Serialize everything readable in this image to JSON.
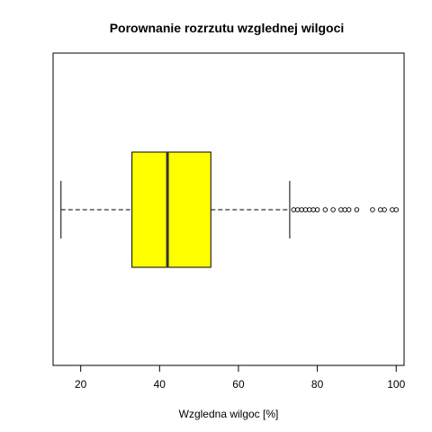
{
  "chart_data": {
    "type": "boxplot",
    "orientation": "horizontal",
    "title": "Porownanie rozrzutu wzglednej wilgoci",
    "xlabel": "Wzgledna wilgoc [%]",
    "ylabel": "",
    "xticks": [
      "20",
      "40",
      "60",
      "80",
      "100"
    ],
    "xlim": [
      13,
      102
    ],
    "box": {
      "whisker_low": 15,
      "q1": 33,
      "median": 42,
      "q3": 53,
      "whisker_high": 73,
      "outliers": [
        74,
        75,
        76,
        77,
        78,
        79,
        80,
        82,
        84,
        86,
        87,
        88,
        90,
        94,
        96,
        97,
        99,
        100
      ],
      "fill_color": "#ffff00"
    },
    "grid": false,
    "legend": "none"
  }
}
